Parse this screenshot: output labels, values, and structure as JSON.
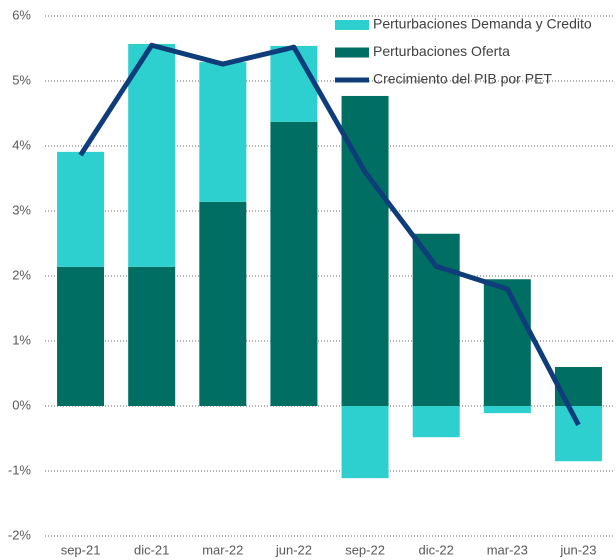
{
  "chart_data": {
    "type": "bar",
    "categories": [
      "sep-21",
      "dic-21",
      "mar-22",
      "jun-22",
      "sep-22",
      "dic-22",
      "mar-23",
      "jun-23"
    ],
    "series": [
      {
        "name": "Perturbaciones Oferta",
        "color": "#006e62",
        "values": [
          2.14,
          2.14,
          3.14,
          4.37,
          4.77,
          2.65,
          1.95,
          0.6
        ]
      },
      {
        "name": "Perturbaciones Demanda y Credito",
        "color": "#2ecfcf",
        "values": [
          1.77,
          3.43,
          2.15,
          1.17,
          -1.11,
          -0.48,
          -0.11,
          -0.85
        ]
      },
      {
        "name": "Crecimiento del PIB por PET",
        "type": "line",
        "color": "#0e3d7a",
        "values": [
          3.86,
          5.55,
          5.26,
          5.52,
          3.6,
          2.15,
          1.8,
          -0.29
        ]
      }
    ],
    "stacked": true,
    "ylim": [
      -2,
      6
    ],
    "yticks": [
      {
        "value": -2,
        "label": "-2%"
      },
      {
        "value": -1,
        "label": "-1%"
      },
      {
        "value": 0,
        "label": "0%"
      },
      {
        "value": 1,
        "label": "1%"
      },
      {
        "value": 2,
        "label": "2%"
      },
      {
        "value": 3,
        "label": "3%"
      },
      {
        "value": 4,
        "label": "4%"
      },
      {
        "value": 5,
        "label": "5%"
      },
      {
        "value": 6,
        "label": "6%"
      }
    ],
    "grid": true,
    "legend": "top-right"
  }
}
